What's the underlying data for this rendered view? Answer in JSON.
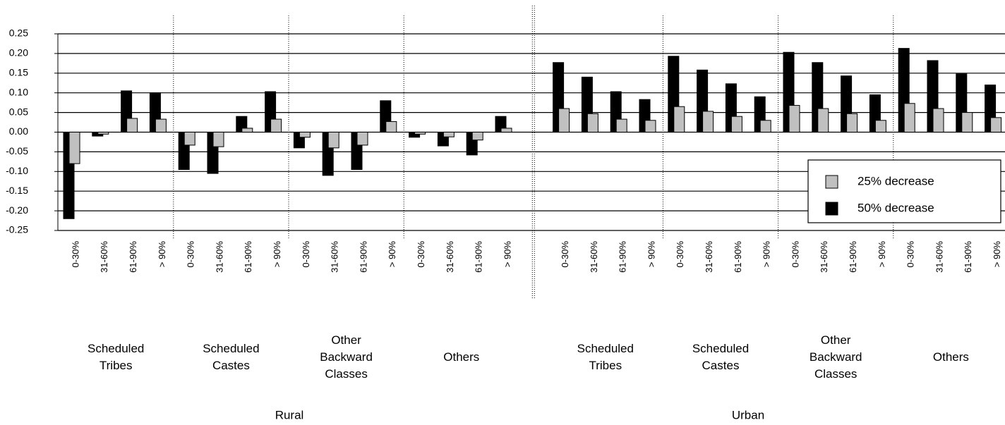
{
  "chart_data": {
    "type": "bar",
    "categories": [
      "0-30%",
      "31-60%",
      "61-90%",
      "> 90%",
      "0-30%",
      "31-60%",
      "61-90%",
      "> 90%",
      "0-30%",
      "31-60%",
      "61-90%",
      "> 90%",
      "0-30%",
      "31-60%",
      "61-90%",
      "> 90%",
      "0-30%",
      "31-60%",
      "61-90%",
      "> 90%",
      "0-30%",
      "31-60%",
      "61-90%",
      "> 90%",
      "0-30%",
      "31-60%",
      "61-90%",
      "> 90%",
      "0-30%",
      "31-60%",
      "61-90%",
      "> 90%"
    ],
    "groups": [
      {
        "name": "Rural",
        "subgroups": [
          [
            "Scheduled",
            "Tribes"
          ],
          [
            "Scheduled",
            "Castes"
          ],
          [
            "Other",
            "Backward",
            "Classes"
          ],
          [
            "Others"
          ]
        ]
      },
      {
        "name": "Urban",
        "subgroups": [
          [
            "Scheduled",
            "Tribes"
          ],
          [
            "Scheduled",
            "Castes"
          ],
          [
            "Other",
            "Backward",
            "Classes"
          ],
          [
            "Others"
          ]
        ]
      }
    ],
    "series": [
      {
        "name": "25% decrease",
        "color": "#c0c0c0",
        "values": [
          -0.08,
          -0.005,
          0.035,
          0.033,
          -0.033,
          -0.037,
          0.01,
          0.033,
          -0.013,
          -0.04,
          -0.033,
          0.027,
          -0.005,
          -0.012,
          -0.02,
          0.01,
          0.06,
          0.047,
          0.033,
          0.03,
          0.065,
          0.053,
          0.04,
          0.03,
          0.068,
          0.06,
          0.047,
          0.03,
          0.073,
          0.06,
          0.05,
          0.037
        ]
      },
      {
        "name": "50% decrease",
        "color": "#000000",
        "values": [
          -0.22,
          -0.01,
          0.105,
          0.1,
          -0.095,
          -0.105,
          0.04,
          0.103,
          -0.04,
          -0.11,
          -0.095,
          0.08,
          -0.013,
          -0.035,
          -0.058,
          0.04,
          0.177,
          0.14,
          0.103,
          0.083,
          0.193,
          0.158,
          0.123,
          0.09,
          0.203,
          0.177,
          0.143,
          0.095,
          0.213,
          0.182,
          0.148,
          0.12
        ]
      }
    ],
    "ylim": [
      -0.25,
      0.25
    ],
    "yticks": [
      0.25,
      {
        "value": 0.2,
        "label": "0.20"
      },
      0.15,
      {
        "value": 0.1,
        "label": "0.10"
      },
      0.05,
      {
        "value": 0,
        "label": "0.00"
      },
      -0.05,
      {
        "value": -0.1,
        "label": "-0.10"
      },
      -0.15,
      {
        "value": -0.2,
        "label": "-0.20"
      },
      -0.25
    ],
    "grid": true,
    "legend": "right"
  }
}
